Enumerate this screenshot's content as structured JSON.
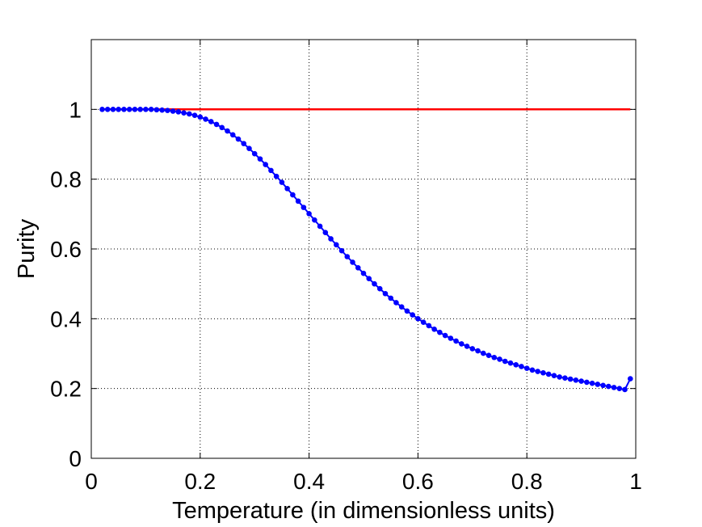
{
  "chart_data": {
    "type": "line",
    "xlabel": "Temperature (in dimensionless units)",
    "ylabel": "Purity",
    "xlim": [
      0,
      1
    ],
    "ylim": [
      0,
      1.2
    ],
    "grid": true,
    "x_ticks": [
      0,
      0.2,
      0.4,
      0.6,
      0.8,
      1
    ],
    "x_tick_labels": [
      "0",
      "0.2",
      "0.4",
      "0.6",
      "0.8",
      "1"
    ],
    "y_ticks": [
      0,
      0.2,
      0.4,
      0.6,
      0.8,
      1
    ],
    "y_tick_labels": [
      "0",
      "0.2",
      "0.4",
      "0.6",
      "0.8",
      "1"
    ],
    "series": [
      {
        "color": "#ff0000",
        "style": "solid-line",
        "x": [
          0.02,
          0.99
        ],
        "y": [
          1.0,
          1.0
        ]
      },
      {
        "color": "#0000ff",
        "style": "line-with-dot-markers",
        "x": [
          0.02,
          0.03,
          0.04,
          0.05,
          0.06,
          0.07,
          0.08,
          0.09,
          0.1,
          0.11,
          0.12,
          0.13,
          0.14,
          0.15,
          0.16,
          0.17,
          0.18,
          0.19,
          0.2,
          0.21,
          0.22,
          0.23,
          0.24,
          0.25,
          0.26,
          0.27,
          0.28,
          0.29,
          0.3,
          0.31,
          0.32,
          0.33,
          0.34,
          0.35,
          0.36,
          0.37,
          0.38,
          0.39,
          0.4,
          0.41,
          0.42,
          0.43,
          0.44,
          0.45,
          0.46,
          0.47,
          0.48,
          0.49,
          0.5,
          0.51,
          0.52,
          0.53,
          0.54,
          0.55,
          0.56,
          0.57,
          0.58,
          0.59,
          0.6,
          0.61,
          0.62,
          0.63,
          0.64,
          0.65,
          0.66,
          0.67,
          0.68,
          0.69,
          0.7,
          0.71,
          0.72,
          0.73,
          0.74,
          0.75,
          0.76,
          0.77,
          0.78,
          0.79,
          0.8,
          0.81,
          0.82,
          0.83,
          0.84,
          0.85,
          0.86,
          0.87,
          0.88,
          0.89,
          0.9,
          0.91,
          0.92,
          0.93,
          0.94,
          0.95,
          0.96,
          0.97,
          0.98,
          0.99
        ],
        "y": [
          1.0,
          1.0,
          1.0,
          1.0,
          1.0,
          1.0,
          1.0,
          1.0,
          1.0,
          1.0,
          0.999,
          0.998,
          0.997,
          0.995,
          0.993,
          0.99,
          0.987,
          0.983,
          0.978,
          0.972,
          0.965,
          0.957,
          0.948,
          0.938,
          0.927,
          0.915,
          0.902,
          0.888,
          0.873,
          0.858,
          0.842,
          0.825,
          0.808,
          0.791,
          0.773,
          0.755,
          0.737,
          0.719,
          0.701,
          0.683,
          0.665,
          0.647,
          0.629,
          0.612,
          0.595,
          0.578,
          0.562,
          0.546,
          0.53,
          0.515,
          0.5,
          0.486,
          0.472,
          0.459,
          0.446,
          0.434,
          0.422,
          0.411,
          0.4,
          0.39,
          0.38,
          0.37,
          0.361,
          0.352,
          0.344,
          0.336,
          0.328,
          0.321,
          0.314,
          0.308,
          0.301,
          0.295,
          0.289,
          0.284,
          0.278,
          0.273,
          0.268,
          0.263,
          0.258,
          0.253,
          0.249,
          0.245,
          0.241,
          0.237,
          0.233,
          0.23,
          0.227,
          0.224,
          0.221,
          0.218,
          0.215,
          0.212,
          0.209,
          0.206,
          0.203,
          0.2,
          0.197,
          0.228
        ]
      }
    ]
  }
}
